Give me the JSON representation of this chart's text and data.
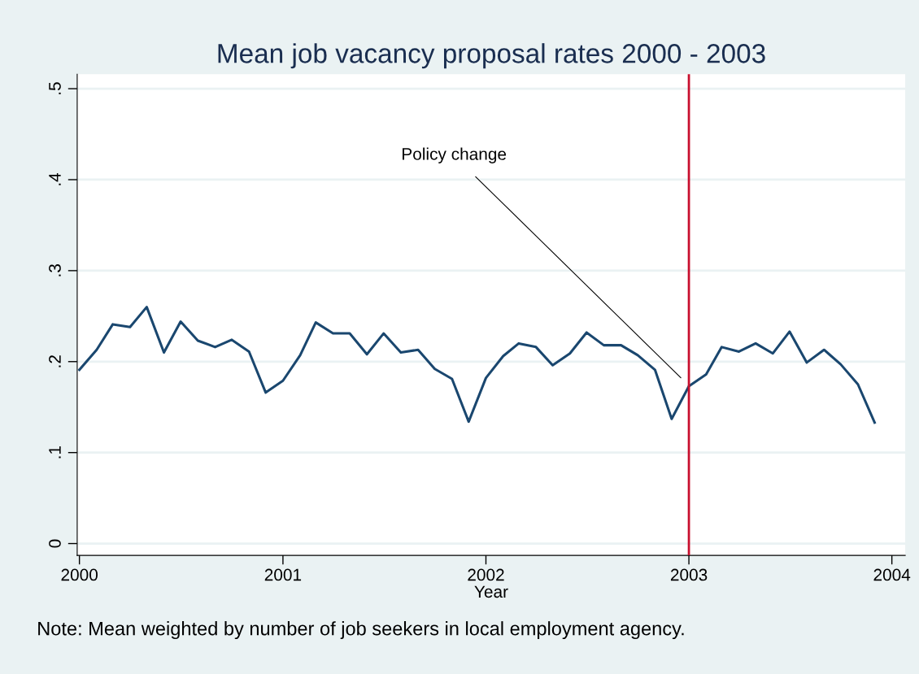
{
  "chart_data": {
    "type": "line",
    "title": "Mean job vacancy proposal rates 2000 - 2003",
    "xlabel": "Year",
    "x": [
      "2000-01",
      "2000-02",
      "2000-03",
      "2000-04",
      "2000-05",
      "2000-06",
      "2000-07",
      "2000-08",
      "2000-09",
      "2000-10",
      "2000-11",
      "2000-12",
      "2001-01",
      "2001-02",
      "2001-03",
      "2001-04",
      "2001-05",
      "2001-06",
      "2001-07",
      "2001-08",
      "2001-09",
      "2001-10",
      "2001-11",
      "2001-12",
      "2002-01",
      "2002-02",
      "2002-03",
      "2002-04",
      "2002-05",
      "2002-06",
      "2002-07",
      "2002-08",
      "2002-09",
      "2002-10",
      "2002-11",
      "2002-12",
      "2003-01",
      "2003-02",
      "2003-03",
      "2003-04",
      "2003-05",
      "2003-06",
      "2003-07",
      "2003-08",
      "2003-09",
      "2003-10",
      "2003-11",
      "2003-12"
    ],
    "series": [
      {
        "color": "#1a476f",
        "values": [
          0.191,
          0.213,
          0.241,
          0.238,
          0.26,
          0.21,
          0.244,
          0.223,
          0.216,
          0.224,
          0.211,
          0.166,
          0.179,
          0.207,
          0.243,
          0.231,
          0.231,
          0.208,
          0.231,
          0.21,
          0.213,
          0.192,
          0.181,
          0.134,
          0.182,
          0.206,
          0.22,
          0.216,
          0.196,
          0.209,
          0.232,
          0.218,
          0.218,
          0.207,
          0.191,
          0.137,
          0.173,
          0.186,
          0.216,
          0.211,
          0.22,
          0.209,
          0.233,
          0.199,
          0.213,
          0.197,
          0.175,
          0.133
        ]
      }
    ],
    "xlim": [
      "1999-12-28",
      "2004-01-25"
    ],
    "xticks": [
      {
        "value": "2000-01-01",
        "label": "2000"
      },
      {
        "value": "2001-01-01",
        "label": "2001"
      },
      {
        "value": "2002-01-01",
        "label": "2002"
      },
      {
        "value": "2003-01-01",
        "label": "2003"
      },
      {
        "value": "2004-01-01",
        "label": "2004"
      }
    ],
    "ylim": [
      -0.013,
      0.516
    ],
    "yticks": [
      0,
      {
        "value": 0.1,
        "label": ".1"
      },
      {
        "value": 0.2,
        "label": ".2"
      },
      {
        "value": 0.3,
        "label": ".3"
      },
      {
        "value": 0.4,
        "label": ".4"
      },
      {
        "value": 0.5,
        "label": ".5"
      }
    ],
    "grid": "y",
    "legend": false,
    "marker": "none",
    "line_style": "solid",
    "ref_lines": [
      {
        "axis": "x",
        "value": "2003-01-01",
        "color": "#c8102e"
      }
    ],
    "annotations": [
      "Policy change",
      "Note: Mean weighted by number of job seekers in local employment agency."
    ]
  }
}
